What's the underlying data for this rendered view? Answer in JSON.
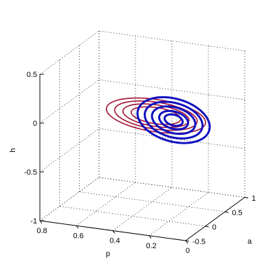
{
  "chart_data": {
    "type": "line",
    "projection": "3d",
    "title": "",
    "xlabel": "p",
    "ylabel": "a",
    "zlabel": "h",
    "xlim": [
      0,
      0.8
    ],
    "ylim": [
      -0.5,
      1
    ],
    "zlim": [
      -1,
      0.5
    ],
    "grid": true,
    "x_ticks": [
      0.8,
      0.6,
      0.4,
      0.2,
      0
    ],
    "x_tick_labels": [
      "0.8",
      "0.6",
      "0.4",
      "0.2",
      "0"
    ],
    "y_ticks": [
      -0.5,
      0,
      0.5,
      1
    ],
    "y_tick_labels": [
      "-0.5",
      "0",
      "0.5",
      "1"
    ],
    "z_ticks": [
      -1,
      -0.5,
      0,
      0.5
    ],
    "z_tick_labels": [
      "-1",
      "-0.5",
      "0",
      "0.5"
    ],
    "series": [
      {
        "color": "#a01030",
        "curve": "loops",
        "center": {
          "p": 0.31,
          "a": 0.18,
          "h": 0.0
        },
        "radii": [
          0.12,
          0.16,
          0.2,
          0.24
        ],
        "tilt": 0.18,
        "note_extent": "extends toward larger p and positive a"
      },
      {
        "color": "#1010c0",
        "curve": "loops",
        "center": {
          "p": 0.2,
          "a": 0.12,
          "h": 0.0
        },
        "radii": [
          0.05,
          0.08,
          0.12,
          0.16,
          0.2
        ],
        "tilt": 0.45
      }
    ]
  }
}
